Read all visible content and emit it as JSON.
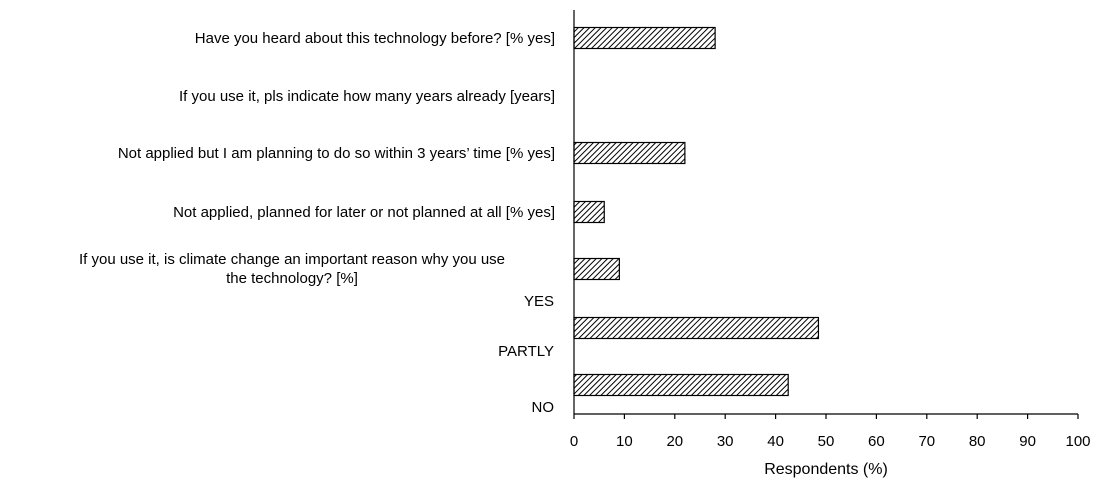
{
  "chart_data": {
    "type": "bar",
    "orientation": "horizontal",
    "categories": [
      "Have you heard about this technology before? [% yes]",
      "If you use it, pls indicate how many years already [years]",
      "Not applied but I am planning to do so within 3 years’ time [% yes]",
      "Not applied, planned for later or not planned at all [% yes]",
      [
        "If you use it, is climate change an important reason why you use",
        "the technology?  [%]"
      ],
      "",
      ""
    ],
    "values": [
      28,
      null,
      22,
      6,
      9,
      48.5,
      42.5
    ],
    "sub_labels": [
      "YES",
      "PARTLY",
      "NO"
    ],
    "xlabel": "Respondents (%)",
    "xlim": [
      0,
      100
    ],
    "xticks": [
      0,
      10,
      20,
      30,
      40,
      50,
      60,
      70,
      80,
      90,
      100
    ],
    "bar_fill": "diagonal-hatch",
    "colors": {
      "bar_stroke": "#000000",
      "hatch": "#000000",
      "background": "#ffffff"
    },
    "grid": false,
    "legend": "none"
  }
}
